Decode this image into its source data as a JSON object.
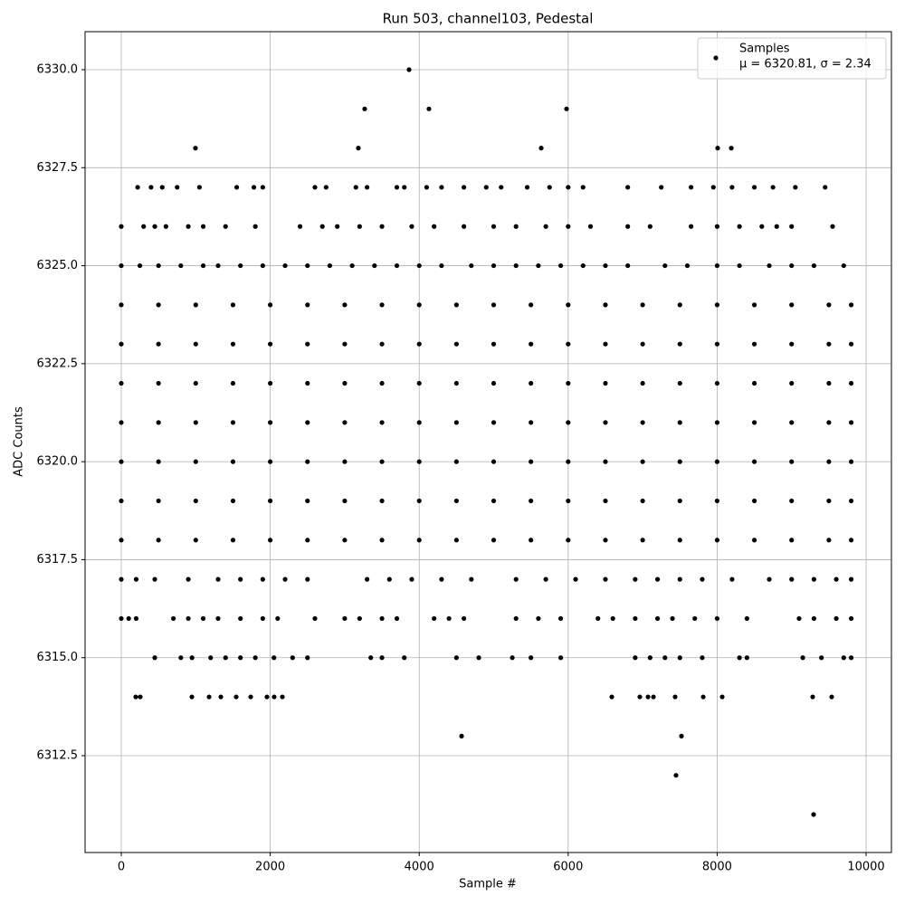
{
  "chart_data": {
    "type": "scatter",
    "title": "Run 503, channel103, Pedestal",
    "x_label": "Sample #",
    "y_label": "ADC Counts",
    "xlim": [
      -486,
      10340
    ],
    "ylim": [
      6310.03,
      6330.97
    ],
    "xticks": [
      0,
      2000,
      4000,
      6000,
      8000,
      10000
    ],
    "yticks": [
      {
        "value": 6312.5,
        "label": "6312.5"
      },
      {
        "value": 6315,
        "label": "6315.0"
      },
      {
        "value": 6317.5,
        "label": "6317.5"
      },
      {
        "value": 6320,
        "label": "6320.0"
      },
      {
        "value": 6322.5,
        "label": "6322.5"
      },
      {
        "value": 6325,
        "label": "6325.0"
      },
      {
        "value": 6327.5,
        "label": "6327.5"
      },
      {
        "value": 6330,
        "label": "6330.0"
      }
    ],
    "grid": true,
    "legend_position": "upper-right",
    "legend_note": "μ = 6320.81, σ = 2.34",
    "series": [
      {
        "name": "Samples",
        "color": "#000000",
        "x": [
          0,
          500,
          1000,
          1500,
          2000,
          2500,
          3000,
          3500,
          4000,
          4500,
          5000,
          5500,
          6000,
          6500,
          7000,
          7500,
          8000,
          8500,
          9000,
          9500,
          9800,
          0,
          500,
          1000,
          1500,
          2000,
          2500,
          3000,
          3500,
          4000,
          4500,
          5000,
          5500,
          6000,
          6500,
          7000,
          7500,
          8000,
          8500,
          9000,
          9500,
          9800,
          0,
          500,
          1000,
          1500,
          2000,
          2500,
          3000,
          3500,
          4000,
          4500,
          5000,
          5500,
          6000,
          6500,
          7000,
          7500,
          8000,
          8500,
          9000,
          9500,
          9800,
          0,
          500,
          1000,
          1500,
          2000,
          2500,
          3000,
          3500,
          4000,
          4500,
          5000,
          5500,
          6000,
          6500,
          7000,
          7500,
          8000,
          8500,
          9000,
          9500,
          9800,
          0,
          500,
          1000,
          1500,
          2000,
          2500,
          3000,
          3500,
          4000,
          4500,
          5000,
          5500,
          6000,
          6500,
          7000,
          7500,
          8000,
          8500,
          9000,
          9500,
          9800,
          0,
          500,
          1000,
          1500,
          2000,
          2500,
          3000,
          3500,
          4000,
          4500,
          5000,
          5500,
          6000,
          6500,
          7000,
          7500,
          8000,
          8500,
          9000,
          9500,
          9800,
          0,
          500,
          1000,
          1500,
          2000,
          2500,
          3000,
          3500,
          4000,
          4500,
          5000,
          5500,
          6000,
          6500,
          7000,
          7500,
          8000,
          8500,
          9000,
          9500,
          9800,
          0,
          200,
          450,
          900,
          1300,
          1600,
          1900,
          2200,
          2500,
          3300,
          3600,
          3900,
          4300,
          4700,
          5300,
          5700,
          6100,
          6500,
          6900,
          7200,
          7500,
          7800,
          8200,
          8700,
          9000,
          9300,
          9600,
          9800,
          0,
          100,
          200,
          700,
          900,
          1100,
          1300,
          1600,
          1900,
          2100,
          2600,
          3000,
          3200,
          3500,
          3700,
          4200,
          4400,
          4600,
          5300,
          5600,
          5900,
          6400,
          6600,
          6900,
          7200,
          7400,
          7700,
          8000,
          8400,
          9100,
          9300,
          9600,
          9800,
          450,
          800,
          950,
          1200,
          1400,
          1600,
          1800,
          2050,
          2300,
          2500,
          3350,
          3500,
          3800,
          4500,
          4800,
          5250,
          5500,
          5900,
          6900,
          7100,
          7300,
          7500,
          7800,
          8300,
          8400,
          9150,
          9400,
          9700,
          9800,
          0,
          250,
          500,
          800,
          1100,
          1300,
          1600,
          1900,
          2200,
          2500,
          2800,
          3100,
          3400,
          3700,
          4000,
          4300,
          4700,
          5000,
          5300,
          5600,
          5900,
          6200,
          6500,
          6800,
          7300,
          7600,
          8000,
          8300,
          8700,
          9000,
          9300,
          9700,
          0,
          300,
          450,
          600,
          900,
          1100,
          1400,
          1800,
          2400,
          2700,
          2900,
          3200,
          3500,
          3900,
          4200,
          4600,
          5000,
          5300,
          5700,
          6000,
          6300,
          6800,
          7100,
          7650,
          8000,
          8300,
          8600,
          8800,
          9000,
          9550,
          220,
          400,
          550,
          750,
          1050,
          1550,
          1780,
          1900,
          2600,
          2750,
          3150,
          3300,
          3700,
          3800,
          4100,
          4300,
          4600,
          4900,
          5100,
          5450,
          5750,
          6000,
          6200,
          6800,
          7250,
          7650,
          7950,
          8200,
          8500,
          8750,
          9050,
          9450,
          194,
          255,
          948,
          1179,
          1337,
          1543,
          1738,
          1956,
          2053,
          2163,
          6586,
          6962,
          7072,
          7145,
          7436,
          7813,
          8068,
          9283,
          9538,
          3864,
          3268,
          4131,
          5978,
          996,
          3183,
          5638,
          8007,
          8190,
          4569,
          7521,
          7448,
          9295
        ],
        "values": [
          6318,
          6318,
          6318,
          6318,
          6318,
          6318,
          6318,
          6318,
          6318,
          6318,
          6318,
          6318,
          6318,
          6318,
          6318,
          6318,
          6318,
          6318,
          6318,
          6318,
          6318,
          6319,
          6319,
          6319,
          6319,
          6319,
          6319,
          6319,
          6319,
          6319,
          6319,
          6319,
          6319,
          6319,
          6319,
          6319,
          6319,
          6319,
          6319,
          6319,
          6319,
          6319,
          6320,
          6320,
          6320,
          6320,
          6320,
          6320,
          6320,
          6320,
          6320,
          6320,
          6320,
          6320,
          6320,
          6320,
          6320,
          6320,
          6320,
          6320,
          6320,
          6320,
          6320,
          6321,
          6321,
          6321,
          6321,
          6321,
          6321,
          6321,
          6321,
          6321,
          6321,
          6321,
          6321,
          6321,
          6321,
          6321,
          6321,
          6321,
          6321,
          6321,
          6321,
          6321,
          6322,
          6322,
          6322,
          6322,
          6322,
          6322,
          6322,
          6322,
          6322,
          6322,
          6322,
          6322,
          6322,
          6322,
          6322,
          6322,
          6322,
          6322,
          6322,
          6322,
          6322,
          6323,
          6323,
          6323,
          6323,
          6323,
          6323,
          6323,
          6323,
          6323,
          6323,
          6323,
          6323,
          6323,
          6323,
          6323,
          6323,
          6323,
          6323,
          6323,
          6323,
          6323,
          6324,
          6324,
          6324,
          6324,
          6324,
          6324,
          6324,
          6324,
          6324,
          6324,
          6324,
          6324,
          6324,
          6324,
          6324,
          6324,
          6324,
          6324,
          6324,
          6324,
          6324,
          6317,
          6317,
          6317,
          6317,
          6317,
          6317,
          6317,
          6317,
          6317,
          6317,
          6317,
          6317,
          6317,
          6317,
          6317,
          6317,
          6317,
          6317,
          6317,
          6317,
          6317,
          6317,
          6317,
          6317,
          6317,
          6317,
          6317,
          6317,
          6316,
          6316,
          6316,
          6316,
          6316,
          6316,
          6316,
          6316,
          6316,
          6316,
          6316,
          6316,
          6316,
          6316,
          6316,
          6316,
          6316,
          6316,
          6316,
          6316,
          6316,
          6316,
          6316,
          6316,
          6316,
          6316,
          6316,
          6316,
          6316,
          6316,
          6316,
          6316,
          6316,
          6315,
          6315,
          6315,
          6315,
          6315,
          6315,
          6315,
          6315,
          6315,
          6315,
          6315,
          6315,
          6315,
          6315,
          6315,
          6315,
          6315,
          6315,
          6315,
          6315,
          6315,
          6315,
          6315,
          6315,
          6315,
          6315,
          6315,
          6315,
          6315,
          6325,
          6325,
          6325,
          6325,
          6325,
          6325,
          6325,
          6325,
          6325,
          6325,
          6325,
          6325,
          6325,
          6325,
          6325,
          6325,
          6325,
          6325,
          6325,
          6325,
          6325,
          6325,
          6325,
          6325,
          6325,
          6325,
          6325,
          6325,
          6325,
          6325,
          6325,
          6325,
          6326,
          6326,
          6326,
          6326,
          6326,
          6326,
          6326,
          6326,
          6326,
          6326,
          6326,
          6326,
          6326,
          6326,
          6326,
          6326,
          6326,
          6326,
          6326,
          6326,
          6326,
          6326,
          6326,
          6326,
          6326,
          6326,
          6326,
          6326,
          6326,
          6326,
          6327,
          6327,
          6327,
          6327,
          6327,
          6327,
          6327,
          6327,
          6327,
          6327,
          6327,
          6327,
          6327,
          6327,
          6327,
          6327,
          6327,
          6327,
          6327,
          6327,
          6327,
          6327,
          6327,
          6327,
          6327,
          6327,
          6327,
          6327,
          6327,
          6327,
          6327,
          6327,
          6314,
          6314,
          6314,
          6314,
          6314,
          6314,
          6314,
          6314,
          6314,
          6314,
          6314,
          6314,
          6314,
          6314,
          6314,
          6314,
          6314,
          6314,
          6314,
          6330,
          6329,
          6329,
          6329,
          6328,
          6328,
          6328,
          6328,
          6328,
          6313,
          6313,
          6312,
          6311
        ]
      }
    ]
  }
}
